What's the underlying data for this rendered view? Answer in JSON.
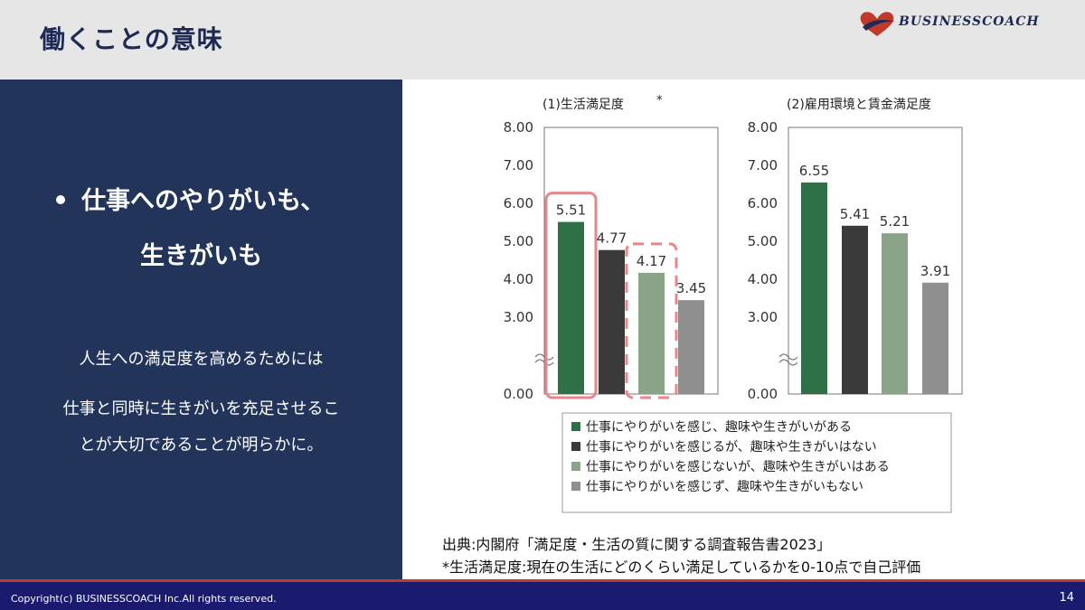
{
  "header": {
    "title": "働くことの意味"
  },
  "logo": {
    "text": "BUSINESSCOACH"
  },
  "left_panel": {
    "bullet_line1": "仕事へのやりがいも、",
    "bullet_line2": "生きがいも",
    "paragraph1": "人生への満足度を高めるためには",
    "paragraph2_line1": "仕事と同時に生きがいを充足させるこ",
    "paragraph2_line2": "とが大切であることが明らかに。"
  },
  "chart_data": [
    {
      "type": "bar",
      "title": "(1)生活満足度",
      "title_note": "*",
      "categories": [
        "仕事にやりがいを感じ、趣味や生きがいがある",
        "仕事にやりがいを感じるが、趣味や生きがいはない",
        "仕事にやりがいを感じないが、趣味や生きがいはある",
        "仕事にやりがいを感じず、趣味や生きがいもない"
      ],
      "values": [
        5.51,
        4.77,
        4.17,
        3.45
      ],
      "value_labels": [
        "5.51",
        "4.77",
        "4.17",
        "3.45"
      ],
      "yticks": [
        "8.00",
        "7.00",
        "6.00",
        "5.00",
        "4.00",
        "3.00",
        "0.00"
      ],
      "ylim": [
        0,
        8
      ],
      "axis_break": true,
      "highlights": [
        {
          "index": 0,
          "style": "solid"
        },
        {
          "index": 2,
          "style": "dashed"
        }
      ]
    },
    {
      "type": "bar",
      "title": "(2)雇用環境と賃金満足度",
      "categories": [
        "仕事にやりがいを感じ、趣味や生きがいがある",
        "仕事にやりがいを感じるが、趣味や生きがいはない",
        "仕事にやりがいを感じないが、趣味や生きがいはある",
        "仕事にやりがいを感じず、趣味や生きがいもない"
      ],
      "values": [
        6.55,
        5.41,
        5.21,
        3.91
      ],
      "value_labels": [
        "6.55",
        "5.41",
        "5.21",
        "3.91"
      ],
      "yticks": [
        "8.00",
        "7.00",
        "6.00",
        "5.00",
        "4.00",
        "3.00",
        "0.00"
      ],
      "ylim": [
        0,
        8
      ],
      "axis_break": true
    }
  ],
  "legend": {
    "items": [
      {
        "label": "仕事にやりがいを感じ、趣味や生きがいがある",
        "color": "#2e7148"
      },
      {
        "label": "仕事にやりがいを感じるが、趣味や生きがいはない",
        "color": "#3a3a3a"
      },
      {
        "label": "仕事にやりがいを感じないが、趣味や生きがいはある",
        "color": "#8aa488"
      },
      {
        "label": "仕事にやりがいを感じず、趣味や生きがいもない",
        "color": "#8f8f8f"
      }
    ]
  },
  "colors": {
    "series": [
      "#2e7148",
      "#3a3a3a",
      "#8aa488",
      "#8f8f8f"
    ],
    "highlight": "#e8868a",
    "navy": "#22345a"
  },
  "source": {
    "line1": "出典:内閣府「満足度・生活の質に関する調査報告書2023」",
    "line2": "*生活満足度:現在の生活にどのくらい満足しているかを0-10点で自己評価"
  },
  "footer": {
    "copyright": "Copyright(c) BUSINESSCOACH Inc.All rights reserved.",
    "page": "14"
  }
}
